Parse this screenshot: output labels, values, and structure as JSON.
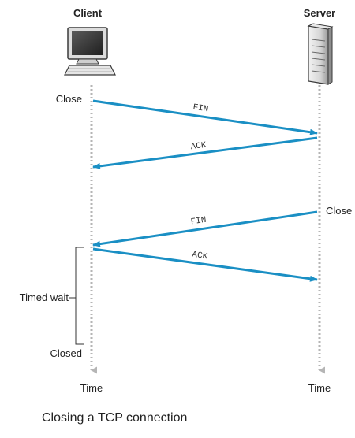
{
  "client": {
    "title": "Client",
    "events": {
      "close": "Close",
      "timed_wait": "Timed wait",
      "closed": "Closed"
    },
    "time_label": "Time"
  },
  "server": {
    "title": "Server",
    "events": {
      "close": "Close"
    },
    "time_label": "Time"
  },
  "messages": [
    {
      "label": "FIN",
      "from": "client",
      "to": "server"
    },
    {
      "label": "ACK",
      "from": "server",
      "to": "client"
    },
    {
      "label": "FIN",
      "from": "server",
      "to": "client"
    },
    {
      "label": "ACK",
      "from": "client",
      "to": "server"
    }
  ],
  "caption": "Closing a TCP connection",
  "colors": {
    "arrow": "#1a8fc4",
    "timeline": "#b5b5b5",
    "icon_dark": "#3a3a3a",
    "icon_light": "#e3e3e3"
  }
}
